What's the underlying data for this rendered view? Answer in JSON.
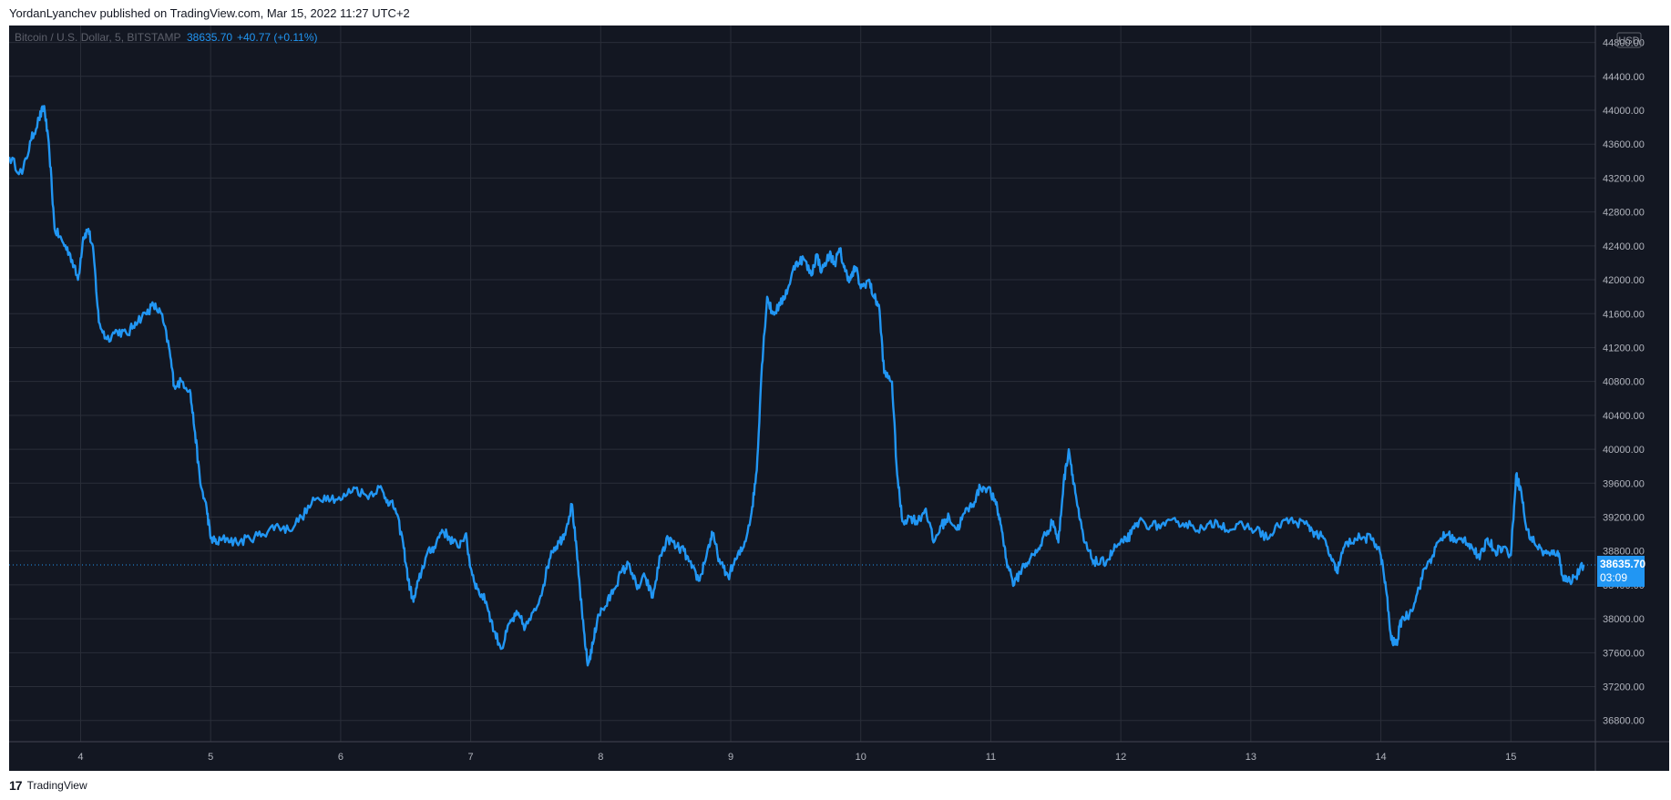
{
  "header": {
    "published_text": "YordanLyanchev published on TradingView.com, Mar 15, 2022 11:27 UTC+2"
  },
  "footer": {
    "logo_mark": "17",
    "logo_text": "TradingView"
  },
  "chart_data": {
    "type": "line",
    "symbol_line": {
      "name": "Bitcoin / U.S. Dollar, 5, BITSTAMP",
      "price": "38635.70",
      "change": "+40.77 (+0.11%)"
    },
    "currency": "USD",
    "last_price_label": "38635.70",
    "countdown": "03:09",
    "last_price": 38635.7,
    "ylim": [
      36550,
      45000
    ],
    "xlim": [
      3.45,
      15.65
    ],
    "yticks": [
      "36800.00",
      "37200.00",
      "37600.00",
      "38000.00",
      "38400.00",
      "38800.00",
      "39200.00",
      "39600.00",
      "40000.00",
      "40400.00",
      "40800.00",
      "41200.00",
      "41600.00",
      "42000.00",
      "42400.00",
      "42800.00",
      "43200.00",
      "43600.00",
      "44000.00",
      "44400.00",
      "44800.00"
    ],
    "xticks": [
      {
        "x": 4,
        "label": "4"
      },
      {
        "x": 5,
        "label": "5"
      },
      {
        "x": 6,
        "label": "6"
      },
      {
        "x": 7,
        "label": "7"
      },
      {
        "x": 8,
        "label": "8"
      },
      {
        "x": 9,
        "label": "9"
      },
      {
        "x": 10,
        "label": "10"
      },
      {
        "x": 11,
        "label": "11"
      },
      {
        "x": 12,
        "label": "12"
      },
      {
        "x": 13,
        "label": "13"
      },
      {
        "x": 14,
        "label": "14"
      },
      {
        "x": 15,
        "label": "15"
      }
    ],
    "series": [
      {
        "color": "#2196f3",
        "points": [
          [
            3.45,
            43450
          ],
          [
            3.55,
            43250
          ],
          [
            3.62,
            43650
          ],
          [
            3.68,
            43900
          ],
          [
            3.72,
            44050
          ],
          [
            3.76,
            43500
          ],
          [
            3.8,
            42600
          ],
          [
            3.86,
            42450
          ],
          [
            3.92,
            42300
          ],
          [
            3.98,
            42000
          ],
          [
            4.02,
            42500
          ],
          [
            4.06,
            42600
          ],
          [
            4.1,
            42300
          ],
          [
            4.14,
            41500
          ],
          [
            4.2,
            41300
          ],
          [
            4.28,
            41400
          ],
          [
            4.36,
            41350
          ],
          [
            4.42,
            41500
          ],
          [
            4.5,
            41600
          ],
          [
            4.56,
            41700
          ],
          [
            4.62,
            41600
          ],
          [
            4.68,
            41200
          ],
          [
            4.72,
            40750
          ],
          [
            4.78,
            40800
          ],
          [
            4.84,
            40700
          ],
          [
            4.88,
            40200
          ],
          [
            4.92,
            39600
          ],
          [
            4.97,
            39300
          ],
          [
            5.0,
            38950
          ],
          [
            5.05,
            38900
          ],
          [
            5.12,
            38950
          ],
          [
            5.2,
            38900
          ],
          [
            5.3,
            38950
          ],
          [
            5.4,
            39000
          ],
          [
            5.5,
            39100
          ],
          [
            5.6,
            39050
          ],
          [
            5.7,
            39200
          ],
          [
            5.8,
            39400
          ],
          [
            5.9,
            39450
          ],
          [
            6.0,
            39400
          ],
          [
            6.1,
            39550
          ],
          [
            6.2,
            39450
          ],
          [
            6.3,
            39550
          ],
          [
            6.36,
            39400
          ],
          [
            6.42,
            39300
          ],
          [
            6.48,
            38900
          ],
          [
            6.52,
            38450
          ],
          [
            6.56,
            38200
          ],
          [
            6.6,
            38450
          ],
          [
            6.66,
            38750
          ],
          [
            6.72,
            38850
          ],
          [
            6.78,
            39050
          ],
          [
            6.84,
            38950
          ],
          [
            6.9,
            38850
          ],
          [
            6.96,
            39000
          ],
          [
            7.0,
            38600
          ],
          [
            7.05,
            38350
          ],
          [
            7.12,
            38200
          ],
          [
            7.18,
            37850
          ],
          [
            7.24,
            37650
          ],
          [
            7.3,
            37950
          ],
          [
            7.36,
            38050
          ],
          [
            7.42,
            37900
          ],
          [
            7.5,
            38100
          ],
          [
            7.56,
            38400
          ],
          [
            7.62,
            38800
          ],
          [
            7.68,
            38900
          ],
          [
            7.72,
            39000
          ],
          [
            7.78,
            39350
          ],
          [
            7.82,
            38700
          ],
          [
            7.86,
            38000
          ],
          [
            7.9,
            37450
          ],
          [
            7.94,
            37700
          ],
          [
            7.98,
            38050
          ],
          [
            8.04,
            38150
          ],
          [
            8.1,
            38350
          ],
          [
            8.16,
            38550
          ],
          [
            8.22,
            38650
          ],
          [
            8.28,
            38350
          ],
          [
            8.34,
            38500
          ],
          [
            8.4,
            38250
          ],
          [
            8.46,
            38750
          ],
          [
            8.52,
            38950
          ],
          [
            8.58,
            38850
          ],
          [
            8.64,
            38800
          ],
          [
            8.7,
            38600
          ],
          [
            8.76,
            38450
          ],
          [
            8.82,
            38800
          ],
          [
            8.86,
            39000
          ],
          [
            8.92,
            38650
          ],
          [
            8.98,
            38500
          ],
          [
            9.04,
            38700
          ],
          [
            9.1,
            38850
          ],
          [
            9.16,
            39250
          ],
          [
            9.2,
            39750
          ],
          [
            9.24,
            41000
          ],
          [
            9.28,
            41800
          ],
          [
            9.32,
            41600
          ],
          [
            9.38,
            41700
          ],
          [
            9.44,
            41900
          ],
          [
            9.5,
            42200
          ],
          [
            9.56,
            42250
          ],
          [
            9.62,
            42050
          ],
          [
            9.66,
            42300
          ],
          [
            9.7,
            42100
          ],
          [
            9.76,
            42300
          ],
          [
            9.8,
            42200
          ],
          [
            9.84,
            42350
          ],
          [
            9.88,
            42100
          ],
          [
            9.92,
            42000
          ],
          [
            9.96,
            42150
          ],
          [
            10.0,
            41900
          ],
          [
            10.06,
            42000
          ],
          [
            10.1,
            41800
          ],
          [
            10.14,
            41700
          ],
          [
            10.18,
            40900
          ],
          [
            10.24,
            40800
          ],
          [
            10.28,
            39700
          ],
          [
            10.32,
            39150
          ],
          [
            10.38,
            39200
          ],
          [
            10.44,
            39150
          ],
          [
            10.5,
            39300
          ],
          [
            10.56,
            38900
          ],
          [
            10.62,
            39100
          ],
          [
            10.68,
            39200
          ],
          [
            10.74,
            39050
          ],
          [
            10.8,
            39250
          ],
          [
            10.86,
            39350
          ],
          [
            10.92,
            39550
          ],
          [
            10.98,
            39550
          ],
          [
            11.04,
            39350
          ],
          [
            11.08,
            39100
          ],
          [
            11.12,
            38700
          ],
          [
            11.18,
            38400
          ],
          [
            11.24,
            38600
          ],
          [
            11.3,
            38700
          ],
          [
            11.36,
            38800
          ],
          [
            11.42,
            39000
          ],
          [
            11.48,
            39150
          ],
          [
            11.52,
            38900
          ],
          [
            11.56,
            39600
          ],
          [
            11.6,
            40000
          ],
          [
            11.64,
            39600
          ],
          [
            11.68,
            39200
          ],
          [
            11.72,
            38900
          ],
          [
            11.78,
            38700
          ],
          [
            11.84,
            38650
          ],
          [
            11.9,
            38700
          ],
          [
            11.96,
            38850
          ],
          [
            12.02,
            38900
          ],
          [
            12.08,
            39000
          ],
          [
            12.14,
            39150
          ],
          [
            12.24,
            39100
          ],
          [
            12.34,
            39100
          ],
          [
            12.44,
            39150
          ],
          [
            12.54,
            39100
          ],
          [
            12.64,
            39050
          ],
          [
            12.74,
            39150
          ],
          [
            12.84,
            39050
          ],
          [
            12.94,
            39100
          ],
          [
            13.04,
            39050
          ],
          [
            13.14,
            38950
          ],
          [
            13.24,
            39150
          ],
          [
            13.34,
            39150
          ],
          [
            13.44,
            39100
          ],
          [
            13.5,
            39000
          ],
          [
            13.56,
            38950
          ],
          [
            13.62,
            38700
          ],
          [
            13.66,
            38550
          ],
          [
            13.72,
            38850
          ],
          [
            13.8,
            38950
          ],
          [
            13.88,
            38950
          ],
          [
            13.94,
            38950
          ],
          [
            14.0,
            38750
          ],
          [
            14.04,
            38350
          ],
          [
            14.08,
            37750
          ],
          [
            14.12,
            37700
          ],
          [
            14.16,
            38000
          ],
          [
            14.22,
            38050
          ],
          [
            14.28,
            38300
          ],
          [
            14.34,
            38600
          ],
          [
            14.4,
            38750
          ],
          [
            14.46,
            38950
          ],
          [
            14.52,
            39000
          ],
          [
            14.58,
            38900
          ],
          [
            14.64,
            38950
          ],
          [
            14.7,
            38850
          ],
          [
            14.76,
            38700
          ],
          [
            14.82,
            38950
          ],
          [
            14.88,
            38800
          ],
          [
            14.94,
            38850
          ],
          [
            15.0,
            38750
          ],
          [
            15.04,
            39700
          ],
          [
            15.08,
            39500
          ],
          [
            15.12,
            39050
          ],
          [
            15.18,
            38900
          ],
          [
            15.24,
            38800
          ],
          [
            15.3,
            38750
          ],
          [
            15.36,
            38800
          ],
          [
            15.4,
            38500
          ],
          [
            15.44,
            38450
          ],
          [
            15.5,
            38500
          ],
          [
            15.56,
            38636
          ]
        ]
      }
    ]
  }
}
